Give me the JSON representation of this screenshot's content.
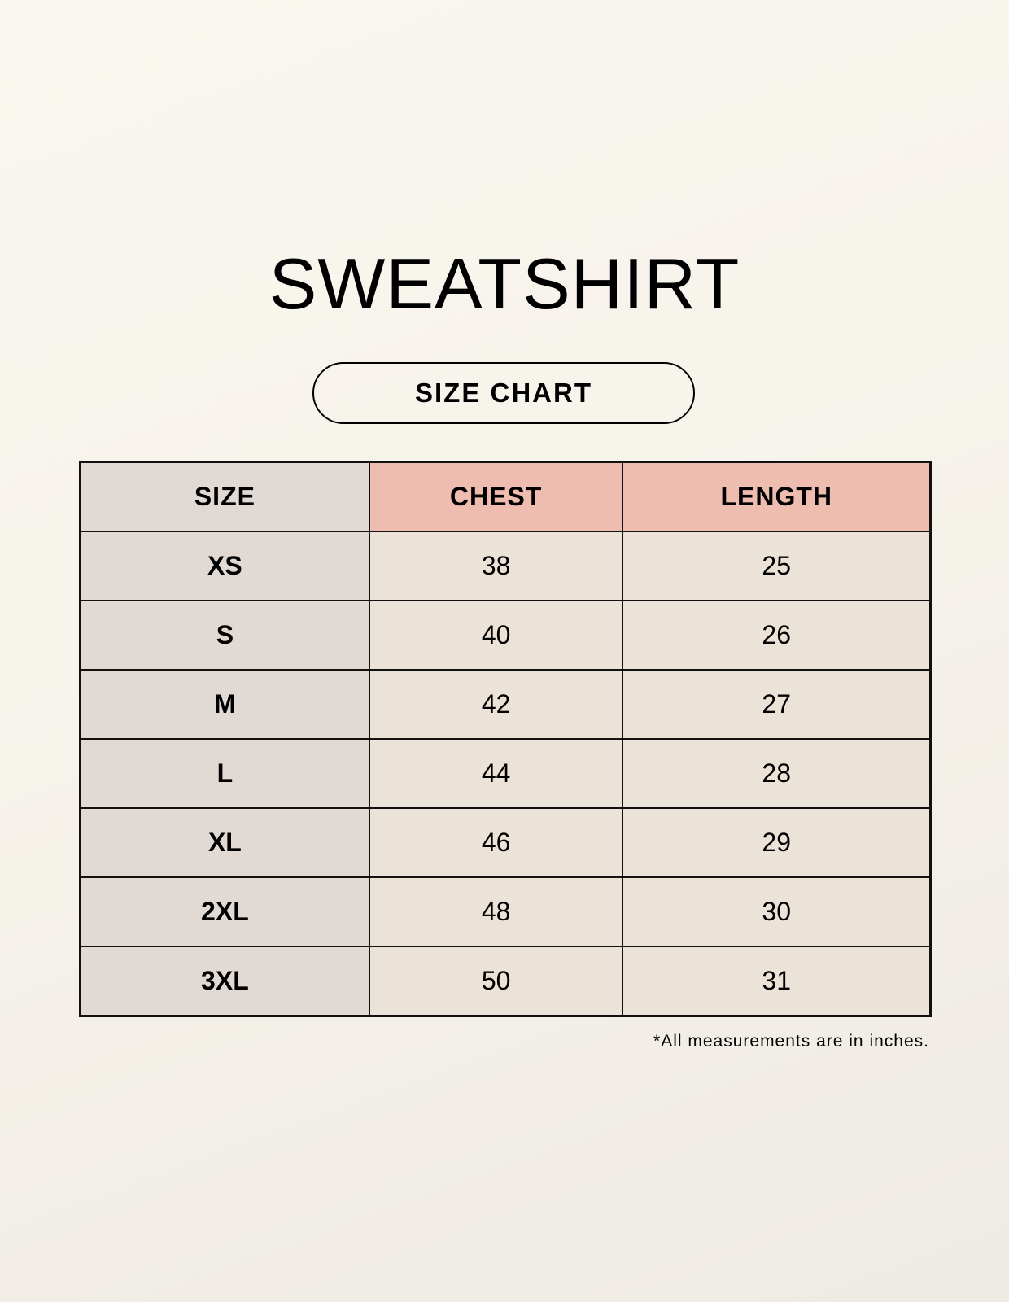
{
  "title": "SWEATSHIRT",
  "subtitle": "SIZE CHART",
  "table": {
    "headers": [
      "SIZE",
      "CHEST",
      "LENGTH"
    ],
    "rows": [
      [
        "XS",
        "38",
        "25"
      ],
      [
        "S",
        "40",
        "26"
      ],
      [
        "M",
        "42",
        "27"
      ],
      [
        "L",
        "44",
        "28"
      ],
      [
        "XL",
        "46",
        "29"
      ],
      [
        "2XL",
        "48",
        "30"
      ],
      [
        "3XL",
        "50",
        "31"
      ]
    ]
  },
  "footnote": "*All measurements are in inches.",
  "colors": {
    "size_column": "#e1d9d3",
    "header_accent": "#efbdb0",
    "cell": "#ebe3d8"
  }
}
